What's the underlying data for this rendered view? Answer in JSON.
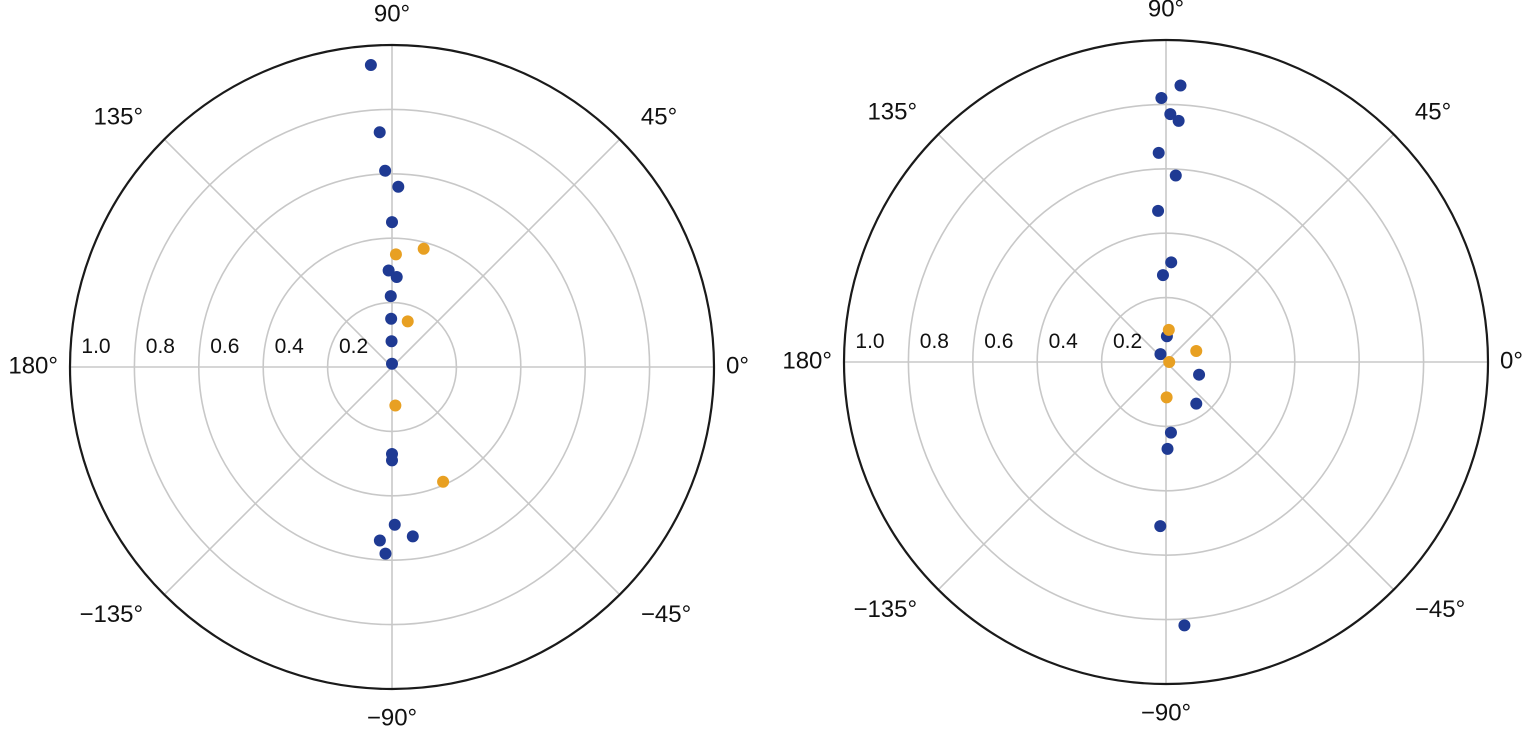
{
  "colors": {
    "series_a": "#1f3a93",
    "series_b": "#e8a022",
    "grid": "#c8c8c8",
    "outline": "#1a1a1a"
  },
  "chart_data": [
    {
      "type": "scatter",
      "projection": "polar",
      "theta_unit": "degrees",
      "rlim": [
        0,
        1.0
      ],
      "rticks": [
        0.2,
        0.4,
        0.6,
        0.8,
        1.0
      ],
      "rtick_labels": [
        "0.2",
        "0.4",
        "0.6",
        "0.8",
        "1.0"
      ],
      "theta_ticks": [
        0,
        45,
        90,
        135,
        180,
        -135,
        -90,
        -45
      ],
      "theta_tick_labels": [
        "0°",
        "45°",
        "90°",
        "135°",
        "180°",
        "−135°",
        "−90°",
        "−45°"
      ],
      "grid": true,
      "series": [
        {
          "color": "blue",
          "points": [
            {
              "theta": 94,
              "r": 0.94
            },
            {
              "theta": 93,
              "r": 0.73
            },
            {
              "theta": 92,
              "r": 0.61
            },
            {
              "theta": 88,
              "r": 0.56
            },
            {
              "theta": 90,
              "r": 0.45
            },
            {
              "theta": 92,
              "r": 0.3
            },
            {
              "theta": 87,
              "r": 0.28
            },
            {
              "theta": 91,
              "r": 0.22
            },
            {
              "theta": 91,
              "r": 0.15
            },
            {
              "theta": 91,
              "r": 0.08
            },
            {
              "theta": 90,
              "r": 0.01
            },
            {
              "theta": -90,
              "r": 0.27
            },
            {
              "theta": -90,
              "r": 0.29
            },
            {
              "theta": -89,
              "r": 0.49
            },
            {
              "theta": -94,
              "r": 0.54
            },
            {
              "theta": -92,
              "r": 0.58
            },
            {
              "theta": -83,
              "r": 0.53
            }
          ]
        },
        {
          "color": "orange",
          "points": [
            {
              "theta": 88,
              "r": 0.35
            },
            {
              "theta": 75,
              "r": 0.38
            },
            {
              "theta": 71,
              "r": 0.15
            },
            {
              "theta": -85,
              "r": 0.12
            },
            {
              "theta": -66,
              "r": 0.39
            }
          ]
        }
      ]
    },
    {
      "type": "scatter",
      "projection": "polar",
      "theta_unit": "degrees",
      "rlim": [
        0,
        1.0
      ],
      "rticks": [
        0.2,
        0.4,
        0.6,
        0.8,
        1.0
      ],
      "rtick_labels": [
        "0.2",
        "0.4",
        "0.6",
        "0.8",
        "1.0"
      ],
      "theta_ticks": [
        0,
        45,
        90,
        135,
        180,
        -135,
        -90,
        -45
      ],
      "theta_tick_labels": [
        "0°",
        "45°",
        "90°",
        "135°",
        "180°",
        "−135°",
        "−90°",
        "−45°"
      ],
      "grid": true,
      "series": [
        {
          "color": "blue",
          "points": [
            {
              "theta": 87,
              "r": 0.86
            },
            {
              "theta": 91,
              "r": 0.82
            },
            {
              "theta": 89,
              "r": 0.77
            },
            {
              "theta": 87,
              "r": 0.75
            },
            {
              "theta": 92,
              "r": 0.65
            },
            {
              "theta": 87,
              "r": 0.58
            },
            {
              "theta": 93,
              "r": 0.47
            },
            {
              "theta": 87,
              "r": 0.31
            },
            {
              "theta": 92,
              "r": 0.27
            },
            {
              "theta": 88,
              "r": 0.08
            },
            {
              "theta": 125,
              "r": 0.03
            },
            {
              "theta": -21,
              "r": 0.11
            },
            {
              "theta": -54,
              "r": 0.16
            },
            {
              "theta": -86,
              "r": 0.22
            },
            {
              "theta": -89,
              "r": 0.27
            },
            {
              "theta": -92,
              "r": 0.51
            },
            {
              "theta": -86,
              "r": 0.82
            }
          ]
        },
        {
          "color": "orange",
          "points": [
            {
              "theta": 85,
              "r": 0.1
            },
            {
              "theta": 20,
              "r": 0.1
            },
            {
              "theta": -89,
              "r": 0.11
            },
            {
              "theta": 0,
              "r": 0.01
            }
          ]
        }
      ]
    }
  ]
}
